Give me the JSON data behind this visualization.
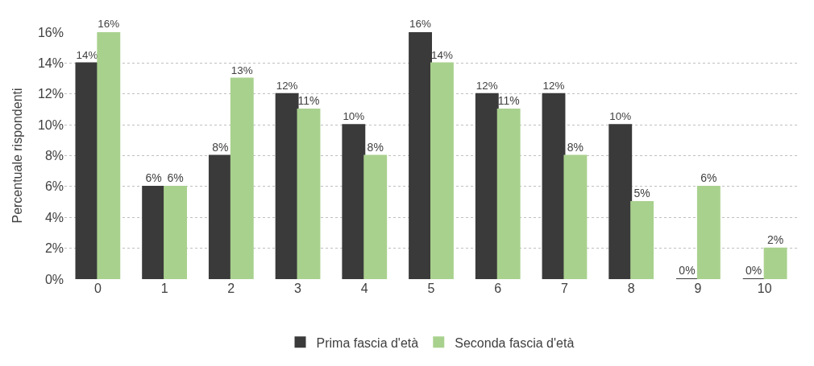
{
  "chart_data": {
    "type": "bar",
    "ylabel": "Percentuale rispondenti",
    "categories": [
      "0",
      "1",
      "2",
      "3",
      "4",
      "5",
      "6",
      "7",
      "8",
      "9",
      "10"
    ],
    "series": [
      {
        "name": "Prima fascia d'età",
        "color": "#3a3a3a",
        "values": [
          14,
          6,
          8,
          12,
          10,
          16,
          12,
          12,
          10,
          0,
          0
        ],
        "value_labels": [
          "14%",
          "6%",
          "8%",
          "12%",
          "10%",
          "16%",
          "12%",
          "12%",
          "10%",
          "0%",
          "0%"
        ]
      },
      {
        "name": "Seconda fascia d'età",
        "color": "#a9d18e",
        "values": [
          16,
          6,
          13,
          11,
          8,
          14,
          11,
          8,
          5,
          6,
          2
        ],
        "value_labels": [
          "16%",
          "6%",
          "13%",
          "11%",
          "8%",
          "14%",
          "11%",
          "8%",
          "5%",
          "6%",
          "2%"
        ]
      }
    ],
    "ylim": [
      0,
      16
    ],
    "yticks": [
      {
        "value": 0,
        "label": "0%"
      },
      {
        "value": 2,
        "label": "2%"
      },
      {
        "value": 4,
        "label": "4%"
      },
      {
        "value": 6,
        "label": "6%"
      },
      {
        "value": 8,
        "label": "8%"
      },
      {
        "value": 10,
        "label": "10%"
      },
      {
        "value": 12,
        "label": "12%"
      },
      {
        "value": 14,
        "label": "14%"
      },
      {
        "value": 16,
        "label": "16%"
      }
    ],
    "grid": "y",
    "legend": "bottom"
  }
}
